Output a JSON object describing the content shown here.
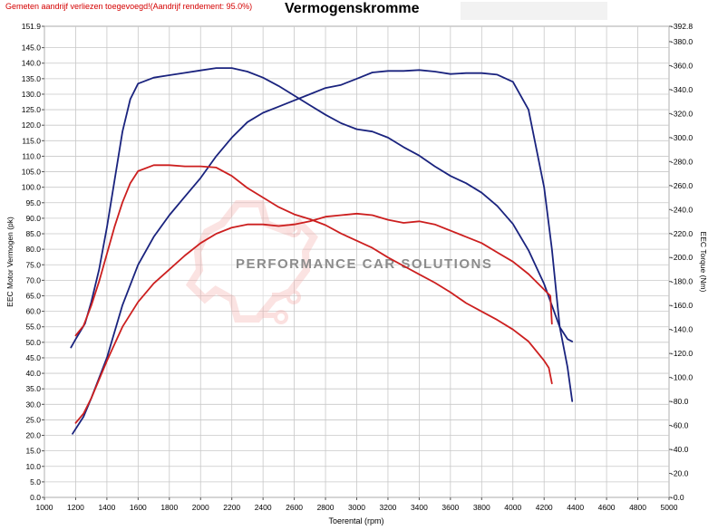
{
  "header": {
    "note": "Gemeten aandrijf verliezen toegevoegd!(Aandrijf rendement: 95.0%)",
    "title": "Vermogenskromme"
  },
  "watermark": {
    "text": "PERFORMANCE CAR SOLUTIONS",
    "logo_icon": "gear-circuit-icon"
  },
  "chart_data": {
    "type": "line",
    "title": "Vermogenskromme",
    "xlabel": "Toerental (rpm)",
    "ylabel": "EEC Motor Vermogen (pk)",
    "ylabel_right": "EEC Torque (Nm)",
    "xlim": [
      1000,
      5000
    ],
    "ylim": [
      0,
      151.9
    ],
    "ylim_right": [
      0,
      392.8
    ],
    "x_ticks": [
      1000,
      1200,
      1400,
      1600,
      1800,
      2000,
      2200,
      2400,
      2600,
      2800,
      3000,
      3200,
      3400,
      3600,
      3800,
      4000,
      4200,
      4400,
      4600,
      4800,
      5000
    ],
    "y_ticks_left": [
      "0.0",
      "5.0",
      "10.0",
      "15.0",
      "20.0",
      "25.0",
      "30.0",
      "35.0",
      "40.0",
      "45.0",
      "50.0",
      "55.0",
      "60.0",
      "65.0",
      "70.0",
      "75.0",
      "80.0",
      "85.0",
      "90.0",
      "95.0",
      "100.0",
      "105.0",
      "110.0",
      "115.0",
      "120.0",
      "125.0",
      "130.0",
      "135.0",
      "140.0",
      "145.0",
      "151.9"
    ],
    "y_ticks_right": [
      "0.0",
      "20.0",
      "40.0",
      "60.0",
      "80.0",
      "100.0",
      "120.0",
      "140.0",
      "160.0",
      "180.0",
      "200.0",
      "220.0",
      "240.0",
      "260.0",
      "280.0",
      "300.0",
      "320.0",
      "340.0",
      "360.0",
      "380.0",
      "392.8"
    ],
    "grid": true,
    "colors": {
      "blue": "#1a237e",
      "red": "#cc1f1f"
    },
    "series": [
      {
        "color": "#1a237e",
        "axis": "left",
        "x": [
          1180,
          1250,
          1300,
          1400,
          1500,
          1600,
          1700,
          1800,
          1900,
          2000,
          2100,
          2200,
          2300,
          2400,
          2500,
          2600,
          2700,
          2800,
          2900,
          3000,
          3100,
          3200,
          3300,
          3400,
          3500,
          3600,
          3700,
          3800,
          3900,
          4000,
          4100,
          4200,
          4250,
          4300,
          4350,
          4380
        ],
        "y": [
          20.5,
          26,
          32,
          45,
          62,
          75,
          84,
          91,
          97,
          103,
          110,
          116,
          121,
          124,
          126,
          128,
          130,
          132,
          133,
          135,
          137,
          137.5,
          137.5,
          137.8,
          137.3,
          136.5,
          136.8,
          136.8,
          136.3,
          134,
          125,
          100,
          80,
          55,
          42,
          31
        ]
      },
      {
        "color": "#1a237e",
        "axis": "right",
        "x": [
          1170,
          1200,
          1260,
          1300,
          1350,
          1400,
          1450,
          1500,
          1550,
          1600,
          1700,
          1800,
          1900,
          2000,
          2100,
          2200,
          2300,
          2400,
          2500,
          2600,
          2700,
          2800,
          2900,
          3000,
          3100,
          3200,
          3300,
          3400,
          3500,
          3600,
          3700,
          3800,
          3900,
          4000,
          4100,
          4200,
          4250,
          4300,
          4350,
          4380
        ],
        "y": [
          125,
          132,
          145,
          163,
          190,
          225,
          265,
          305,
          332,
          345,
          350,
          352,
          354,
          356,
          358,
          358,
          355,
          350,
          343,
          335,
          327,
          319,
          312,
          307,
          305,
          300,
          292,
          285,
          276,
          268,
          262,
          254,
          243,
          228,
          206,
          178,
          160,
          142,
          132,
          130
        ]
      },
      {
        "color": "#cc1f1f",
        "axis": "left",
        "x": [
          1200,
          1250,
          1300,
          1400,
          1500,
          1600,
          1700,
          1800,
          1900,
          2000,
          2100,
          2200,
          2300,
          2400,
          2500,
          2600,
          2700,
          2800,
          2900,
          3000,
          3100,
          3200,
          3300,
          3400,
          3500,
          3600,
          3700,
          3800,
          3900,
          4000,
          4100,
          4200,
          4220,
          4240,
          4250
        ],
        "y": [
          24,
          27,
          32,
          44,
          55,
          63,
          69,
          73.5,
          78,
          82,
          85,
          87,
          88,
          88,
          87.5,
          88,
          89,
          90.5,
          91,
          91.5,
          91,
          89.5,
          88.5,
          89,
          88,
          86,
          84,
          82,
          79,
          76,
          72,
          67,
          66,
          65,
          56
        ]
      },
      {
        "color": "#cc1f1f",
        "axis": "right",
        "x": [
          1200,
          1250,
          1300,
          1350,
          1400,
          1450,
          1500,
          1550,
          1600,
          1700,
          1800,
          1900,
          2000,
          2100,
          2200,
          2300,
          2400,
          2500,
          2600,
          2700,
          2800,
          2900,
          3000,
          3100,
          3200,
          3300,
          3400,
          3500,
          3600,
          3700,
          3800,
          3900,
          4000,
          4100,
          4200,
          4230,
          4250
        ],
        "y": [
          135,
          143,
          160,
          180,
          203,
          226,
          246,
          262,
          272,
          277,
          277,
          276,
          276,
          275,
          268,
          258,
          250,
          242,
          236,
          232,
          227,
          220,
          214,
          208,
          200,
          193,
          186,
          179,
          171,
          162,
          155,
          148,
          140,
          130,
          114,
          108,
          95
        ]
      }
    ]
  }
}
